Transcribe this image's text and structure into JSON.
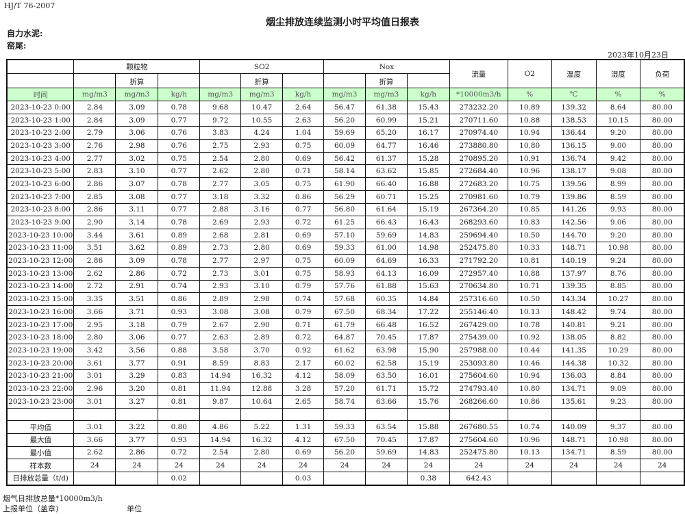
{
  "standard": "HJ/T  76-2007",
  "title": "烟尘排放连续监测小时平均值日报表",
  "company": "自力水泥:",
  "unit_name": "窑尾:",
  "date": "2023年10月23日",
  "headers": {
    "particulate": "颗粒物",
    "so2": "SO2",
    "nox": "Nox",
    "flow": "流量",
    "o2": "O2",
    "temperature": "温度",
    "humidity": "湿度",
    "load": "负荷",
    "converted": "折算",
    "units": [
      "时间",
      "mg/m3",
      "mg/m3",
      "kg/h",
      "mg/m3",
      "mg/m3",
      "kg/h",
      "mg/m3",
      "mg/m3",
      "kg/h",
      "*10000m3/h",
      "%",
      "℃",
      "%",
      "%"
    ]
  },
  "rows": [
    [
      "2023-10-23 0:00",
      "2.84",
      "3.09",
      "0.78",
      "9.68",
      "10.47",
      "2.64",
      "56.47",
      "61.38",
      "15.43",
      "273232.20",
      "10.89",
      "139.32",
      "8.64",
      "80.00"
    ],
    [
      "2023-10-23 1:00",
      "2.84",
      "3.09",
      "0.77",
      "9.72",
      "10.55",
      "2.63",
      "56.20",
      "60.99",
      "15.21",
      "270711.60",
      "10.88",
      "138.53",
      "10.15",
      "80.00"
    ],
    [
      "2023-10-23 2:00",
      "2.79",
      "3.06",
      "0.76",
      "3.83",
      "4.24",
      "1.04",
      "59.69",
      "65.20",
      "16.17",
      "270974.40",
      "10.94",
      "136.44",
      "9.20",
      "80.00"
    ],
    [
      "2023-10-23 3:00",
      "2.76",
      "2.98",
      "0.76",
      "2.75",
      "2.93",
      "0.75",
      "60.09",
      "64.77",
      "16.46",
      "273880.80",
      "10.80",
      "136.15",
      "9.00",
      "80.00"
    ],
    [
      "2023-10-23 4:00",
      "2.77",
      "3.02",
      "0.75",
      "2.54",
      "2.80",
      "0.69",
      "56.42",
      "61.37",
      "15.28",
      "270895.20",
      "10.91",
      "136.74",
      "9.42",
      "80.00"
    ],
    [
      "2023-10-23 5:00",
      "2.83",
      "3.10",
      "0.77",
      "2.62",
      "2.80",
      "0.71",
      "58.14",
      "63.62",
      "15.85",
      "272684.40",
      "10.96",
      "138.17",
      "9.08",
      "80.00"
    ],
    [
      "2023-10-23 6:00",
      "2.86",
      "3.07",
      "0.78",
      "2.77",
      "3.05",
      "0.75",
      "61.90",
      "66.40",
      "16.88",
      "272683.20",
      "10.75",
      "139.56",
      "8.99",
      "80.00"
    ],
    [
      "2023-10-23 7:00",
      "2.85",
      "3.08",
      "0.77",
      "3.18",
      "3.32",
      "0.86",
      "56.29",
      "60.71",
      "15.25",
      "270981.60",
      "10.79",
      "139.86",
      "8.59",
      "80.00"
    ],
    [
      "2023-10-23 8:00",
      "2.86",
      "3.11",
      "0.77",
      "2.88",
      "3.16",
      "0.77",
      "56.80",
      "61.64",
      "15.19",
      "267364.20",
      "10.85",
      "141.26",
      "9.93",
      "80.00"
    ],
    [
      "2023-10-23 9:00",
      "2.90",
      "3.14",
      "0.78",
      "2.69",
      "2.93",
      "0.72",
      "61.25",
      "66.43",
      "16.43",
      "268293.60",
      "10.83",
      "142.56",
      "9.06",
      "80.00"
    ],
    [
      "2023-10-23 10:00",
      "3.44",
      "3.61",
      "0.89",
      "2.68",
      "2.81",
      "0.69",
      "57.10",
      "59.69",
      "14.83",
      "259694.40",
      "10.50",
      "144.70",
      "9.20",
      "80.00"
    ],
    [
      "2023-10-23 11:00",
      "3.51",
      "3.62",
      "0.89",
      "2.73",
      "2.80",
      "0.69",
      "59.33",
      "61.00",
      "14.98",
      "252475.80",
      "10.33",
      "148.71",
      "10.98",
      "80.00"
    ],
    [
      "2023-10-23 12:00",
      "2.86",
      "3.09",
      "0.78",
      "2.77",
      "2.97",
      "0.75",
      "60.09",
      "64.69",
      "16.33",
      "271792.20",
      "10.81",
      "140.19",
      "9.24",
      "80.00"
    ],
    [
      "2023-10-23 13:00",
      "2.62",
      "2.86",
      "0.72",
      "2.73",
      "3.01",
      "0.75",
      "58.93",
      "64.13",
      "16.09",
      "272957.40",
      "10.88",
      "137.97",
      "8.76",
      "80.00"
    ],
    [
      "2023-10-23 14:00",
      "2.72",
      "2.91",
      "0.74",
      "2.93",
      "3.10",
      "0.79",
      "57.76",
      "61.88",
      "15.63",
      "270634.80",
      "10.71",
      "139.35",
      "8.85",
      "80.00"
    ],
    [
      "2023-10-23 15:00",
      "3.35",
      "3.51",
      "0.86",
      "2.89",
      "2.98",
      "0.74",
      "57.68",
      "60.35",
      "14.84",
      "257316.60",
      "10.50",
      "143.34",
      "10.27",
      "80.00"
    ],
    [
      "2023-10-23 16:00",
      "3.66",
      "3.71",
      "0.93",
      "3.08",
      "3.08",
      "0.79",
      "67.50",
      "68.34",
      "17.22",
      "255146.40",
      "10.13",
      "148.42",
      "9.74",
      "80.00"
    ],
    [
      "2023-10-23 17:00",
      "2.95",
      "3.18",
      "0.79",
      "2.67",
      "2.90",
      "0.71",
      "61.79",
      "66.48",
      "16.52",
      "267429.00",
      "10.78",
      "140.81",
      "9.21",
      "80.00"
    ],
    [
      "2023-10-23 18:00",
      "2.80",
      "3.06",
      "0.77",
      "2.63",
      "2.89",
      "0.72",
      "64.87",
      "70.45",
      "17.87",
      "275439.00",
      "10.92",
      "138.05",
      "8.82",
      "80.00"
    ],
    [
      "2023-10-23 19:00",
      "3.42",
      "3.56",
      "0.88",
      "3.58",
      "3.70",
      "0.92",
      "61.62",
      "63.98",
      "15.90",
      "257988.00",
      "10.44",
      "141.35",
      "10.29",
      "80.00"
    ],
    [
      "2023-10-23 20:00",
      "3.61",
      "3.77",
      "0.91",
      "8.59",
      "8.83",
      "2.17",
      "60.02",
      "62.58",
      "15.19",
      "253093.80",
      "10.46",
      "144.38",
      "10.32",
      "80.00"
    ],
    [
      "2023-10-23 21:00",
      "3.01",
      "3.29",
      "0.83",
      "14.94",
      "16.32",
      "4.12",
      "58.09",
      "63.50",
      "16.01",
      "275604.60",
      "10.94",
      "136.03",
      "8.84",
      "80.00"
    ],
    [
      "2023-10-23 22:00",
      "2.96",
      "3.20",
      "0.81",
      "11.94",
      "12.88",
      "3.28",
      "57.20",
      "61.71",
      "15.72",
      "274793.40",
      "10.80",
      "134.71",
      "9.09",
      "80.00"
    ],
    [
      "2023-10-23 23:00",
      "3.01",
      "3.27",
      "0.81",
      "9.87",
      "10.64",
      "2.65",
      "58.74",
      "63.66",
      "15.76",
      "268266.60",
      "10.86",
      "135.61",
      "9.23",
      "80.00"
    ]
  ],
  "summary": [
    [
      "平均值",
      "3.01",
      "3.22",
      "0.80",
      "4.86",
      "5.22",
      "1.31",
      "59.33",
      "63.54",
      "15.88",
      "267680.55",
      "10.74",
      "140.09",
      "9.37",
      "80.00"
    ],
    [
      "最大值",
      "3.66",
      "3.77",
      "0.93",
      "14.94",
      "16.32",
      "4.12",
      "67.50",
      "70.45",
      "17.87",
      "275604.60",
      "10.96",
      "148.71",
      "10.98",
      "80.00"
    ],
    [
      "最小值",
      "2.62",
      "2.86",
      "0.72",
      "2.54",
      "2.80",
      "0.69",
      "56.20",
      "59.69",
      "14.83",
      "252475.80",
      "10.13",
      "134.71",
      "8.59",
      "80.00"
    ],
    [
      "样本数",
      "24",
      "24",
      "24",
      "24",
      "24",
      "24",
      "24",
      "24",
      "24",
      "24",
      "24",
      "24",
      "24",
      "24"
    ],
    [
      "日排放总量（t/d)",
      "",
      "",
      "0.02",
      "",
      "",
      "0.03",
      "",
      "",
      "0.38",
      "642.43",
      "",
      "",
      "",
      ""
    ]
  ],
  "footer": {
    "flue_gas_total": "烟气日排放总量*10000m3/h",
    "reporting_unit": "上报单位（盖章)",
    "unit_label": "单位"
  }
}
